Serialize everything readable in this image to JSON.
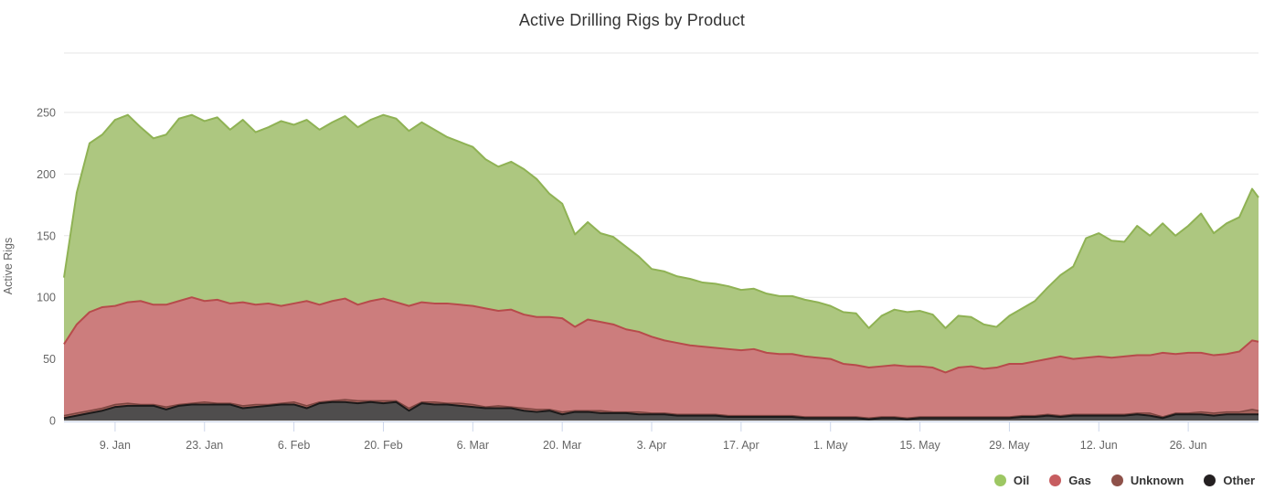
{
  "title": "Active Drilling Rigs by Product",
  "y_axis": {
    "title": "Active Rigs",
    "ticks": [
      0,
      50,
      100,
      150,
      200,
      250
    ]
  },
  "x_axis": {
    "tick_days": [
      8,
      22,
      36,
      50,
      64,
      78,
      92,
      106,
      120,
      134,
      148,
      162,
      176
    ],
    "tick_labels": [
      "9. Jan",
      "23. Jan",
      "6. Feb",
      "20. Feb",
      "6. Mar",
      "20. Mar",
      "3. Apr",
      "17. Apr",
      "1. May",
      "15. May",
      "29. May",
      "12. Jun",
      "26. Jun"
    ]
  },
  "legend": [
    {
      "label": "Oil",
      "color": "#9dc763"
    },
    {
      "label": "Gas",
      "color": "#c75d60"
    },
    {
      "label": "Unknown",
      "color": "#8e5149"
    },
    {
      "label": "Other",
      "color": "#242021"
    }
  ],
  "colors": {
    "Oil": {
      "fill": "#adc780",
      "line": "#8fb254"
    },
    "Gas": {
      "fill": "#cc7d7d",
      "line": "#b74b4b"
    },
    "Unknown": {
      "fill": "#a2615a",
      "line": "#7c4540"
    },
    "Other": {
      "fill": "#4f4d4d",
      "line": "#1c1a1a"
    }
  },
  "chart_data": {
    "type": "area",
    "stacking": "normal",
    "title": "Active Drilling Rigs by Product",
    "xlabel": "",
    "ylabel": "Active Rigs",
    "ylim": [
      0,
      250
    ],
    "grid": "horizontal",
    "legend_position": "bottom-right",
    "stack_order": [
      "Other",
      "Unknown",
      "Gas",
      "Oil"
    ],
    "x_domain_days": [
      0,
      187
    ],
    "x_days": [
      0,
      2,
      4,
      6,
      8,
      10,
      12,
      14,
      16,
      18,
      20,
      22,
      24,
      26,
      28,
      30,
      32,
      34,
      36,
      38,
      40,
      42,
      44,
      46,
      48,
      50,
      52,
      54,
      56,
      58,
      60,
      62,
      64,
      66,
      68,
      70,
      72,
      74,
      76,
      78,
      80,
      82,
      84,
      86,
      88,
      90,
      92,
      94,
      96,
      98,
      100,
      102,
      104,
      106,
      108,
      110,
      112,
      114,
      116,
      118,
      120,
      122,
      124,
      126,
      128,
      130,
      132,
      134,
      136,
      138,
      140,
      142,
      144,
      146,
      148,
      150,
      152,
      154,
      156,
      158,
      160,
      162,
      164,
      166,
      168,
      170,
      172,
      174,
      176,
      178,
      180,
      182,
      184,
      186,
      187
    ],
    "series": [
      {
        "name": "Oil",
        "values": [
          54,
          107,
          137,
          140,
          151,
          152,
          141,
          135,
          138,
          148,
          148,
          146,
          148,
          141,
          148,
          140,
          143,
          150,
          145,
          147,
          142,
          145,
          148,
          144,
          147,
          149,
          149,
          142,
          146,
          141,
          135,
          132,
          129,
          121,
          117,
          120,
          118,
          112,
          100,
          93,
          75,
          79,
          72,
          71,
          67,
          61,
          55,
          56,
          54,
          54,
          52,
          52,
          51,
          49,
          49,
          48,
          47,
          47,
          46,
          45,
          43,
          42,
          42,
          32,
          41,
          45,
          44,
          45,
          43,
          36,
          42,
          40,
          36,
          33,
          39,
          45,
          49,
          58,
          66,
          75,
          97,
          100,
          95,
          93,
          105,
          97,
          105,
          96,
          103,
          113,
          99,
          106,
          109,
          123,
          117
        ]
      },
      {
        "name": "Gas",
        "values": [
          58,
          72,
          80,
          82,
          80,
          82,
          84,
          81,
          83,
          84,
          86,
          82,
          84,
          81,
          84,
          81,
          82,
          79,
          80,
          85,
          79,
          81,
          82,
          78,
          81,
          83,
          80,
          83,
          81,
          80,
          81,
          80,
          80,
          80,
          77,
          79,
          76,
          75,
          75,
          76,
          68,
          74,
          72,
          71,
          67,
          65,
          62,
          59,
          58,
          56,
          55,
          54,
          54,
          53,
          54,
          51,
          50,
          50,
          49,
          48,
          47,
          43,
          42,
          41,
          41,
          42,
          42,
          41,
          40,
          36,
          40,
          41,
          39,
          40,
          43,
          42,
          44,
          45,
          48,
          45,
          46,
          47,
          46,
          47,
          47,
          47,
          52,
          48,
          49,
          48,
          47,
          47,
          49,
          56,
          56
        ]
      },
      {
        "name": "Unknown",
        "values": [
          2,
          2,
          2,
          2,
          2,
          2,
          1,
          1,
          2,
          1,
          1,
          2,
          1,
          1,
          2,
          2,
          1,
          1,
          2,
          2,
          1,
          1,
          2,
          2,
          1,
          2,
          1,
          2,
          1,
          2,
          1,
          2,
          2,
          1,
          2,
          1,
          2,
          2,
          1,
          2,
          1,
          1,
          2,
          1,
          1,
          2,
          1,
          1,
          1,
          1,
          1,
          1,
          1,
          1,
          1,
          1,
          1,
          1,
          1,
          1,
          1,
          1,
          1,
          1,
          1,
          1,
          1,
          1,
          1,
          1,
          1,
          1,
          1,
          1,
          1,
          1,
          1,
          1,
          1,
          1,
          1,
          1,
          1,
          1,
          1,
          2,
          1,
          1,
          1,
          2,
          2,
          2,
          2,
          4,
          3
        ]
      },
      {
        "name": "Other",
        "values": [
          2,
          4,
          6,
          8,
          11,
          12,
          12,
          12,
          9,
          12,
          13,
          13,
          13,
          13,
          10,
          11,
          12,
          13,
          13,
          10,
          14,
          15,
          15,
          14,
          15,
          14,
          15,
          8,
          14,
          13,
          13,
          12,
          11,
          10,
          10,
          10,
          8,
          7,
          8,
          5,
          7,
          7,
          6,
          6,
          6,
          5,
          5,
          5,
          4,
          4,
          4,
          4,
          3,
          3,
          3,
          3,
          3,
          3,
          2,
          2,
          2,
          2,
          2,
          1,
          2,
          2,
          1,
          2,
          2,
          2,
          2,
          2,
          2,
          2,
          2,
          3,
          3,
          4,
          3,
          4,
          4,
          4,
          4,
          4,
          5,
          4,
          2,
          5,
          5,
          5,
          4,
          5,
          5,
          5,
          5
        ]
      }
    ]
  },
  "style": {
    "grid_color": "#e6e6e6",
    "axis_line_color": "#ccd6eb",
    "tick_label_color": "#666666",
    "title_color": "#333333"
  }
}
